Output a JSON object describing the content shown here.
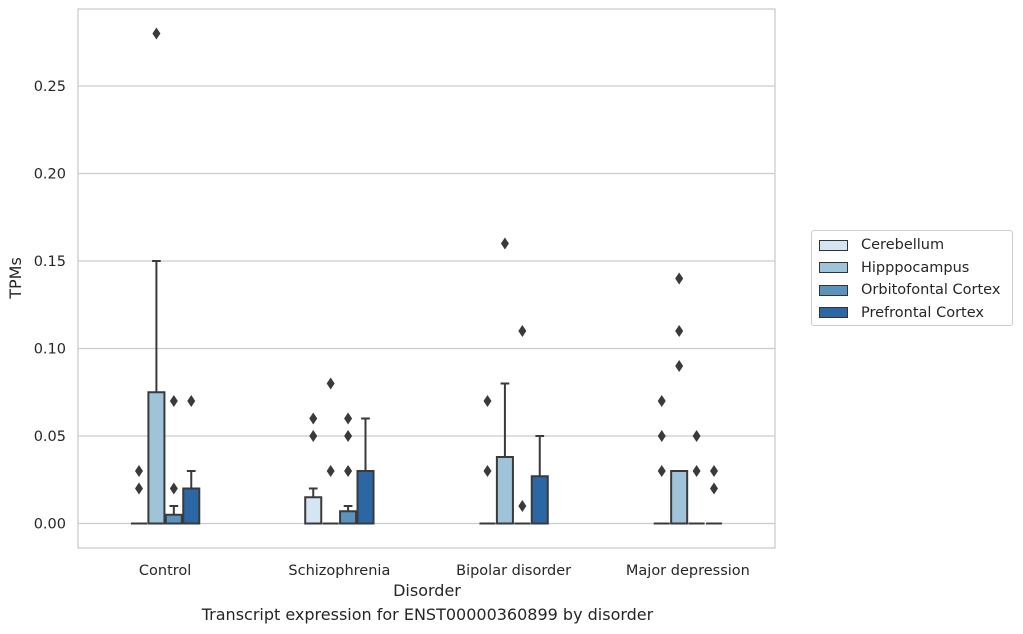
{
  "caption": "Transcript expression for ENST00000360899 by disorder",
  "chart_data": {
    "type": "box",
    "title": "",
    "xlabel": "Disorder",
    "ylabel": "TPMs",
    "ylim": [
      -0.014,
      0.294
    ],
    "yticks": [
      0.0,
      0.05,
      0.1,
      0.15,
      0.2,
      0.25
    ],
    "ytick_labels": [
      "0.00",
      "0.05",
      "0.10",
      "0.15",
      "0.20",
      "0.25"
    ],
    "grid": "horizontal",
    "legend_placement": "right",
    "categories": [
      "Control",
      "Schizophrenia",
      "Bipolar disorder",
      "Major depression"
    ],
    "series": [
      {
        "name": "Cerebellum",
        "color": "#d6e5f3",
        "boxes": [
          {
            "q1": 0,
            "median": 0,
            "q3": 0,
            "whisker_low": 0,
            "whisker_high": 0,
            "outliers": [
              0.02,
              0.03
            ]
          },
          {
            "q1": 0,
            "median": 0,
            "q3": 0.015,
            "whisker_low": 0,
            "whisker_high": 0.02,
            "outliers": [
              0.05,
              0.06
            ]
          },
          {
            "q1": 0,
            "median": 0,
            "q3": 0,
            "whisker_low": 0,
            "whisker_high": 0,
            "outliers": [
              0.03,
              0.07
            ]
          },
          {
            "q1": 0,
            "median": 0,
            "q3": 0,
            "whisker_low": 0,
            "whisker_high": 0,
            "outliers": [
              0.03,
              0.05,
              0.07
            ]
          }
        ]
      },
      {
        "name": "Hipppocampus",
        "color": "#9fc3d9",
        "boxes": [
          {
            "q1": 0,
            "median": 0,
            "q3": 0.075,
            "whisker_low": 0,
            "whisker_high": 0.15,
            "outliers": [
              0.28
            ]
          },
          {
            "q1": 0,
            "median": 0,
            "q3": 0,
            "whisker_low": 0,
            "whisker_high": 0,
            "outliers": [
              0.03,
              0.08
            ]
          },
          {
            "q1": 0,
            "median": 0,
            "q3": 0.038,
            "whisker_low": 0,
            "whisker_high": 0.08,
            "outliers": [
              0.16
            ]
          },
          {
            "q1": 0,
            "median": 0,
            "q3": 0.03,
            "whisker_low": 0,
            "whisker_high": 0.03,
            "outliers": [
              0.09,
              0.11,
              0.14
            ]
          }
        ]
      },
      {
        "name": "Orbitofontal Cortex",
        "color": "#5a93bd",
        "boxes": [
          {
            "q1": 0,
            "median": 0,
            "q3": 0.005,
            "whisker_low": 0,
            "whisker_high": 0.01,
            "outliers": [
              0.02,
              0.07
            ]
          },
          {
            "q1": 0,
            "median": 0,
            "q3": 0.007,
            "whisker_low": 0,
            "whisker_high": 0.01,
            "outliers": [
              0.03,
              0.05,
              0.06
            ]
          },
          {
            "q1": 0,
            "median": 0,
            "q3": 0,
            "whisker_low": 0,
            "whisker_high": 0,
            "outliers": [
              0.01,
              0.11
            ]
          },
          {
            "q1": 0,
            "median": 0,
            "q3": 0,
            "whisker_low": 0,
            "whisker_high": 0,
            "outliers": [
              0.03,
              0.05
            ]
          }
        ]
      },
      {
        "name": "Prefrontal Cortex",
        "color": "#2b67a4",
        "boxes": [
          {
            "q1": 0,
            "median": 0,
            "q3": 0.02,
            "whisker_low": 0,
            "whisker_high": 0.03,
            "outliers": [
              0.07
            ]
          },
          {
            "q1": 0,
            "median": 0,
            "q3": 0.03,
            "whisker_low": 0,
            "whisker_high": 0.06,
            "outliers": []
          },
          {
            "q1": 0,
            "median": 0,
            "q3": 0.027,
            "whisker_low": 0,
            "whisker_high": 0.05,
            "outliers": []
          },
          {
            "q1": 0,
            "median": 0,
            "q3": 0,
            "whisker_low": 0,
            "whisker_high": 0,
            "outliers": [
              0.02,
              0.03
            ]
          }
        ]
      }
    ]
  }
}
